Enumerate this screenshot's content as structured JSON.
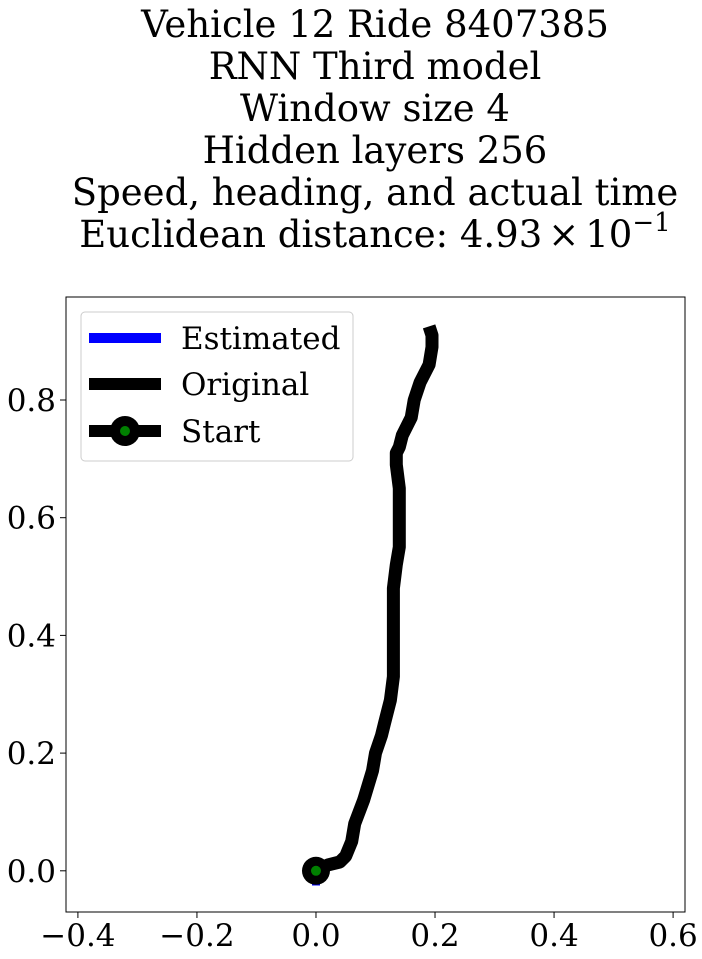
{
  "chart_data": {
    "type": "line",
    "title_lines": [
      "Vehicle 12 Ride 8407385",
      "RNN Third model",
      "Window size 4",
      "Hidden layers 256",
      "Speed, heading, and actual time"
    ],
    "title_distance": {
      "prefix": "Euclidean distance: ",
      "mantissa": "4.93",
      "times": "×",
      "base": "10",
      "exponent": "−1"
    },
    "xlim": [
      -0.42,
      0.62
    ],
    "ylim": [
      -0.07,
      0.975
    ],
    "xticks": [
      -0.4,
      -0.2,
      0.0,
      0.2,
      0.4,
      0.6
    ],
    "xtick_labels": [
      "−0.4",
      "−0.2",
      "0.0",
      "0.2",
      "0.4",
      "0.6"
    ],
    "yticks": [
      0.0,
      0.2,
      0.4,
      0.6,
      0.8
    ],
    "ytick_labels": [
      "0.0",
      "0.2",
      "0.4",
      "0.6",
      "0.8"
    ],
    "grid": false,
    "legend_position": "top-left",
    "series": [
      {
        "name": "Estimated",
        "color": "#0000ff",
        "x": [
          0.0,
          0.0
        ],
        "y": [
          0.0,
          -0.025
        ]
      },
      {
        "name": "Original",
        "color": "#000000",
        "x": [
          0.0,
          0.02,
          0.04,
          0.05,
          0.06,
          0.065,
          0.08,
          0.095,
          0.1,
          0.11,
          0.115,
          0.12,
          0.125,
          0.13,
          0.13,
          0.13,
          0.13,
          0.13,
          0.135,
          0.14,
          0.14,
          0.14,
          0.135,
          0.135,
          0.135,
          0.14,
          0.145,
          0.16,
          0.165,
          0.175,
          0.19,
          0.195,
          0.195,
          0.19
        ],
        "y": [
          0.0,
          0.01,
          0.015,
          0.025,
          0.05,
          0.08,
          0.12,
          0.17,
          0.2,
          0.23,
          0.25,
          0.27,
          0.29,
          0.33,
          0.36,
          0.4,
          0.44,
          0.48,
          0.52,
          0.55,
          0.6,
          0.65,
          0.69,
          0.7,
          0.71,
          0.72,
          0.74,
          0.77,
          0.8,
          0.83,
          0.86,
          0.89,
          0.91,
          0.925
        ]
      },
      {
        "name": "Start",
        "color": "#000000",
        "marker_fill": "#008000",
        "x": [
          0.0
        ],
        "y": [
          0.0
        ]
      }
    ],
    "legend": [
      {
        "label": "Estimated",
        "color": "#0000ff",
        "kind": "line"
      },
      {
        "label": "Original",
        "color": "#000000",
        "kind": "line"
      },
      {
        "label": "Start",
        "color": "#000000",
        "marker_fill": "#008000",
        "kind": "line-marker"
      }
    ]
  }
}
